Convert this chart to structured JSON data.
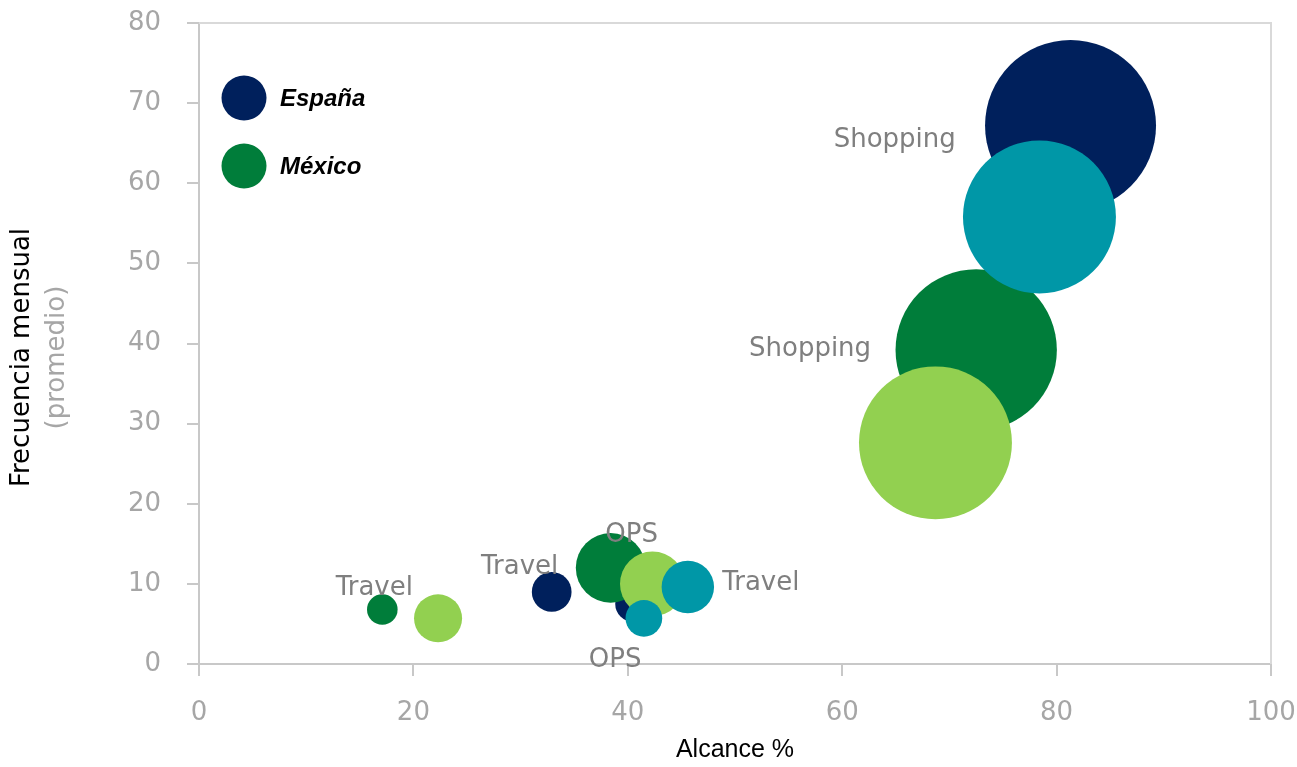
{
  "chart_data": {
    "type": "bubble",
    "xlabel": "Alcance %",
    "ylabel": "Frecuencia mensual\n(promedio)",
    "xlim": [
      0,
      100
    ],
    "xticks": [
      0,
      20,
      40,
      60,
      80,
      100
    ],
    "ylim": [
      0,
      80
    ],
    "yticks": [
      0,
      10,
      20,
      30,
      40,
      50,
      60,
      70,
      80
    ],
    "legend": "top left",
    "series": [
      {
        "name": "España",
        "color": "#00205c",
        "x": [
          81.3,
          32.9,
          40.5
        ],
        "values": [
          67.2,
          9.0,
          7.5
        ],
        "sizes": [
          1,
          0.054,
          0.044
        ]
      },
      {
        "name": "México",
        "color": "#007d3a",
        "x": [
          72.5,
          17.1,
          38.4
        ],
        "values": [
          39.2,
          6.8,
          12.0
        ],
        "sizes": [
          0.89,
          0.032,
          0.166
        ]
      },
      {
        "color": "#92d050",
        "x": [
          68.7,
          22.3,
          42.3
        ],
        "values": [
          27.6,
          5.7,
          10.0
        ],
        "sizes": [
          0.8,
          0.079,
          0.144
        ]
      },
      {
        "color": "#0097a7",
        "x": [
          78.4,
          45.6,
          41.5
        ],
        "values": [
          55.8,
          9.6,
          5.7
        ],
        "sizes": [
          0.8,
          0.094,
          0.046
        ]
      }
    ],
    "annotations": [
      "Shopping",
      "Shopping",
      {
        "text": "Travel",
        "x": 17.1,
        "y": 6.8
      },
      {
        "text": "Travel",
        "x": 32.9,
        "y": 9.0
      },
      {
        "text": "Travel",
        "x": 45.6,
        "y": 9.6
      },
      {
        "text": "OPS",
        "x": 38.4,
        "y": 12.0
      },
      {
        "text": "OPS",
        "x": 40.5,
        "y": 7.5
      }
    ]
  }
}
